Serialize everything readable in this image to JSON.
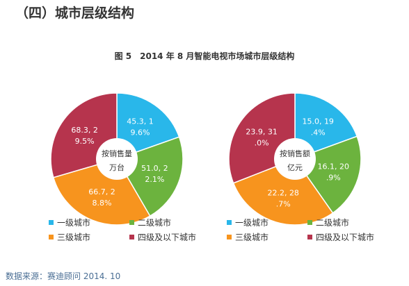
{
  "section_heading": "（四）城市层级结构",
  "chart_data": {
    "type": "pie",
    "title": "图 5　2014 年 8 月智能电视市场城市层级结构",
    "categories": [
      "一级城市",
      "二级城市",
      "三级城市",
      "四级及以下城市"
    ],
    "colors": [
      "#29b7ea",
      "#6cb33e",
      "#f7941e",
      "#b6344d"
    ],
    "legend_position": "bottom",
    "charts": [
      {
        "center_label": [
          "按销售量",
          "万台"
        ],
        "values": [
          45.3,
          51.0,
          66.7,
          68.3
        ],
        "percents": [
          19.6,
          22.1,
          28.8,
          29.5
        ],
        "data_labels": [
          [
            "45.3, 1",
            "9.6%"
          ],
          [
            "51.0, 2",
            "2.1%"
          ],
          [
            "66.7, 2",
            "8.8%"
          ],
          [
            "68.3, 2",
            "9.5%"
          ]
        ]
      },
      {
        "center_label": [
          "按销售额",
          "亿元"
        ],
        "values": [
          15.0,
          16.1,
          22.2,
          23.9
        ],
        "percents": [
          19.4,
          20.9,
          28.7,
          31.0
        ],
        "data_labels": [
          [
            "15.0, 19",
            ".4%"
          ],
          [
            "16.1, 20",
            ".9%"
          ],
          [
            "22.2, 28",
            ".7%"
          ],
          [
            "23.9, 31",
            ".0%"
          ]
        ]
      }
    ]
  },
  "source_note": "数据来源：赛迪顾问 2014. 10"
}
